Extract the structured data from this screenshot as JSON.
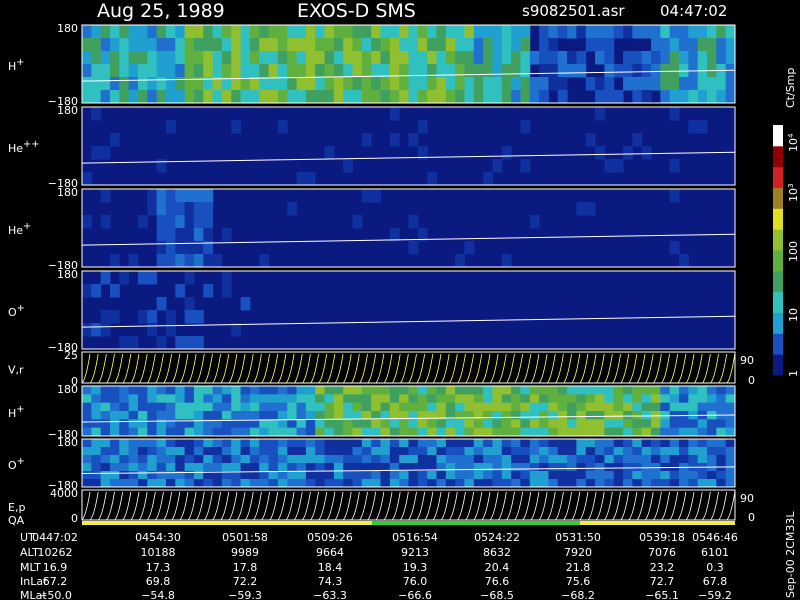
{
  "header": {
    "date": "Aug 25, 1989",
    "instrument": "EXOS-D SMS",
    "file": "s9082501.asr",
    "time": "04:47:02"
  },
  "panels": [
    {
      "label": {
        "base": "H",
        "sup": "+"
      },
      "top": "180",
      "bottom": "−180"
    },
    {
      "label": {
        "base": "He",
        "sup": "++"
      },
      "top": "180",
      "bottom": "−180"
    },
    {
      "label": {
        "base": "He",
        "sup": "+"
      },
      "top": "180",
      "bottom": "−180"
    },
    {
      "label": {
        "base": "O",
        "sup": "+"
      },
      "top": "180",
      "bottom": "−180"
    },
    {
      "label": {
        "base": "V,r"
      },
      "top": "25",
      "bottom": "0",
      "right_top": "90",
      "right_bottom": "0"
    },
    {
      "label": {
        "base": "H",
        "sup": "+"
      },
      "top": "180",
      "bottom": "−180"
    },
    {
      "label": {
        "base": "O",
        "sup": "+"
      },
      "top": "180",
      "bottom": "−180"
    },
    {
      "label": {
        "base": "E,p"
      },
      "top": "4000",
      "bottom": "0",
      "right_top": "90",
      "right_bottom": "0"
    }
  ],
  "qa_label": "QA",
  "colorbar": {
    "unit": "Ct/Smp",
    "labels": [
      {
        "base": "10",
        "sup": "4"
      },
      {
        "base": "10",
        "sup": "3"
      },
      {
        "base": "100"
      },
      {
        "base": "10"
      },
      {
        "base": "1"
      }
    ]
  },
  "footer_note": "Sep-00 2CM33L",
  "table": {
    "rows": [
      {
        "name": "UT",
        "values": [
          "0447:02",
          "0454:30",
          "0501:58",
          "0509:26",
          "0516:54",
          "0524:22",
          "0531:50",
          "0539:18",
          "0546:46"
        ]
      },
      {
        "name": "ALT",
        "values": [
          "10262",
          "10188",
          "9989",
          "9664",
          "9213",
          "8632",
          "7920",
          "7076",
          "6101"
        ]
      },
      {
        "name": "MLT",
        "values": [
          "16.9",
          "17.3",
          "17.8",
          "18.4",
          "19.3",
          "20.4",
          "21.8",
          "23.2",
          "0.3"
        ]
      },
      {
        "name": "InLat",
        "values": [
          "67.2",
          "69.8",
          "72.2",
          "74.3",
          "76.0",
          "76.6",
          "75.6",
          "72.7",
          "67.8"
        ]
      },
      {
        "name": "MLat",
        "values": [
          "−50.0",
          "−54.8",
          "−59.3",
          "−63.3",
          "−66.6",
          "−68.5",
          "−68.2",
          "−65.1",
          "−59.2"
        ]
      }
    ]
  }
}
